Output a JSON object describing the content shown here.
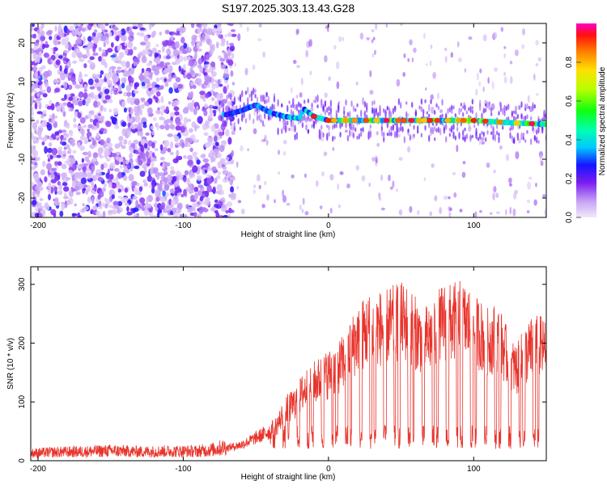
{
  "title": "S197.2025.303.13.43.G28",
  "chart_data": [
    {
      "type": "heatmap",
      "title": "S197.2025.303.13.43.G28",
      "xlabel": "Height of straight line (km)",
      "ylabel": "Frequency (Hz)",
      "xlim": [
        -205,
        150
      ],
      "ylim": [
        -25,
        25
      ],
      "xticks": [
        -200,
        -100,
        0,
        100
      ],
      "yticks": [
        -20,
        -10,
        0,
        10,
        20
      ],
      "ridge": {
        "x": [
          -70,
          -60,
          -50,
          -40,
          -30,
          -20,
          -17,
          -10,
          0,
          20,
          40,
          60,
          80,
          100,
          120,
          150
        ],
        "freq": [
          1.5,
          2.5,
          4,
          2,
          1,
          0.5,
          3,
          1,
          0,
          0,
          0,
          0,
          0,
          0,
          -0.5,
          -1
        ]
      },
      "colorbar": {
        "label": "Normalized spectral amplitude",
        "ticks": [
          "0.0",
          "0.2",
          "0.4",
          "0.6",
          "0.8"
        ],
        "range": [
          0,
          1
        ]
      }
    },
    {
      "type": "line",
      "xlabel": "Height of straight line (km)",
      "ylabel": "SNR (10 * v/v)",
      "xlim": [
        -205,
        150
      ],
      "ylim": [
        0,
        330
      ],
      "xticks": [
        -200,
        -100,
        0,
        100
      ],
      "yticks": [
        0,
        100,
        200,
        300
      ],
      "series": [
        {
          "name": "SNR",
          "color": "#e8342c",
          "x": [
            -205,
            -190,
            -170,
            -150,
            -130,
            -110,
            -90,
            -80,
            -70,
            -60,
            -50,
            -40,
            -35,
            -30,
            -25,
            -20,
            -15,
            -10,
            -5,
            0,
            5,
            10,
            15,
            20,
            25,
            30,
            35,
            40,
            45,
            50,
            55,
            60,
            65,
            70,
            75,
            80,
            85,
            90,
            95,
            100,
            105,
            110,
            115,
            120,
            125,
            130,
            135,
            140,
            145,
            150
          ],
          "values": [
            15,
            17,
            18,
            20,
            18,
            19,
            19,
            22,
            28,
            35,
            50,
            65,
            80,
            110,
            120,
            140,
            160,
            170,
            180,
            190,
            200,
            215,
            240,
            270,
            280,
            290,
            290,
            295,
            300,
            305,
            300,
            280,
            265,
            270,
            290,
            305,
            300,
            310,
            300,
            290,
            275,
            260,
            270,
            250,
            210,
            200,
            230,
            245,
            250,
            240
          ]
        }
      ]
    }
  ]
}
